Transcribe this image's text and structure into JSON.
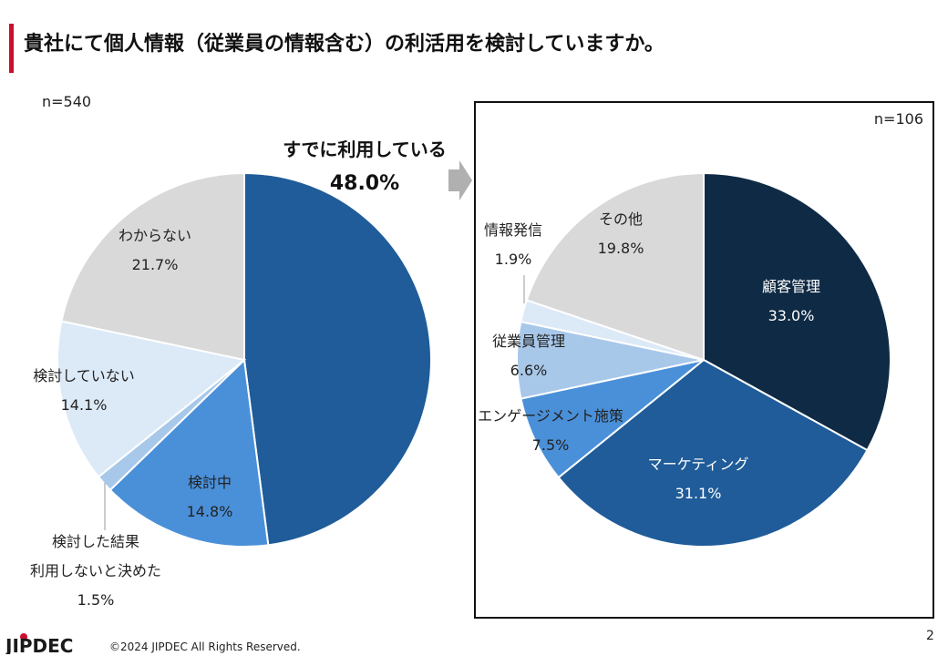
{
  "title": "貴社にて個人情報（従業員の情報含む）の利活用を検討していますか。",
  "highlight": {
    "label": "すでに利用している",
    "value": "48.0%"
  },
  "footer": {
    "copyright": "©2024 JIPDEC All Rights Reserved.",
    "page": "2",
    "logo": "JIPDEC"
  },
  "colors": {
    "accent": "#c8102e",
    "arrow": "#b0b0b0"
  },
  "chart_data": [
    {
      "type": "pie",
      "n_label": "n=540",
      "slices": [
        {
          "name": "すでに利用している",
          "value": 48.0,
          "color": "#1f5c99",
          "label_lines": [],
          "value_text": "",
          "text_color": "#222"
        },
        {
          "name": "検討中",
          "value": 14.8,
          "color": "#4a90d9",
          "label_lines": [
            "検討中"
          ],
          "value_text": "14.8%",
          "text_color": "#222"
        },
        {
          "name": "検討した結果利用しないと決めた",
          "value": 1.5,
          "color": "#a8c8ea",
          "label_lines": [
            "検討した結果",
            "利用しないと決めた"
          ],
          "value_text": "1.5%",
          "text_color": "#222"
        },
        {
          "name": "検討していない",
          "value": 14.1,
          "color": "#dce9f7",
          "label_lines": [
            "検討していない"
          ],
          "value_text": "14.1%",
          "text_color": "#222"
        },
        {
          "name": "わからない",
          "value": 21.7,
          "color": "#d9d9d9",
          "label_lines": [
            "わからない"
          ],
          "value_text": "21.7%",
          "text_color": "#222"
        }
      ]
    },
    {
      "type": "pie",
      "n_label": "n=106",
      "slices": [
        {
          "name": "顧客管理",
          "value": 33.0,
          "color": "#0f2a44",
          "label_lines": [
            "顧客管理"
          ],
          "value_text": "33.0%",
          "text_color": "#ffffff"
        },
        {
          "name": "マーケティング",
          "value": 31.1,
          "color": "#1f5c99",
          "label_lines": [
            "マーケティング"
          ],
          "value_text": "31.1%",
          "text_color": "#ffffff"
        },
        {
          "name": "エンゲージメント施策",
          "value": 7.5,
          "color": "#4a90d9",
          "label_lines": [
            "エンゲージメント施策"
          ],
          "value_text": "7.5%",
          "text_color": "#222"
        },
        {
          "name": "従業員管理",
          "value": 6.6,
          "color": "#a8c8ea",
          "label_lines": [
            "従業員管理"
          ],
          "value_text": "6.6%",
          "text_color": "#222"
        },
        {
          "name": "情報発信",
          "value": 1.9,
          "color": "#dce9f7",
          "label_lines": [
            "情報発信"
          ],
          "value_text": "1.9%",
          "text_color": "#222"
        },
        {
          "name": "その他",
          "value": 19.8,
          "color": "#d9d9d9",
          "label_lines": [
            "その他"
          ],
          "value_text": "19.8%",
          "text_color": "#222"
        }
      ]
    }
  ]
}
